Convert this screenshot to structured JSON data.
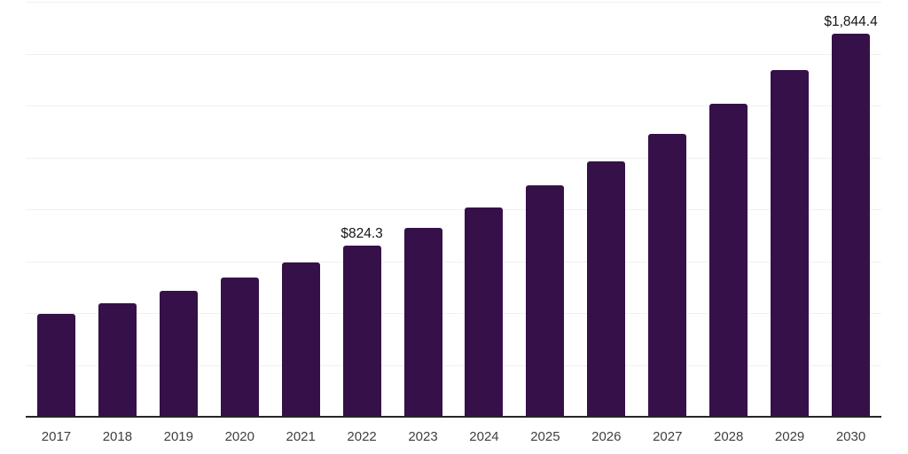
{
  "chart_data": {
    "type": "bar",
    "title": "",
    "xlabel": "",
    "ylabel": "",
    "categories": [
      "2017",
      "2018",
      "2019",
      "2020",
      "2021",
      "2022",
      "2023",
      "2024",
      "2025",
      "2026",
      "2027",
      "2028",
      "2029",
      "2030"
    ],
    "values": [
      496,
      549,
      608,
      673,
      745,
      824.3,
      911,
      1009,
      1116,
      1232,
      1365,
      1510,
      1670,
      1844.4
    ],
    "value_labels": {
      "2022": "$824.3",
      "2030": "$1,844.4"
    },
    "ylim": [
      0,
      2000
    ],
    "gridline_interval": 250,
    "grid": true,
    "legend": false,
    "bar_color": "#351049",
    "axis_line_color": "#262626",
    "gridline_color": "#f0f0f0",
    "tick_label_color": "#3f3f3f",
    "data_label_color": "#151515",
    "background_color": "#ffffff"
  }
}
